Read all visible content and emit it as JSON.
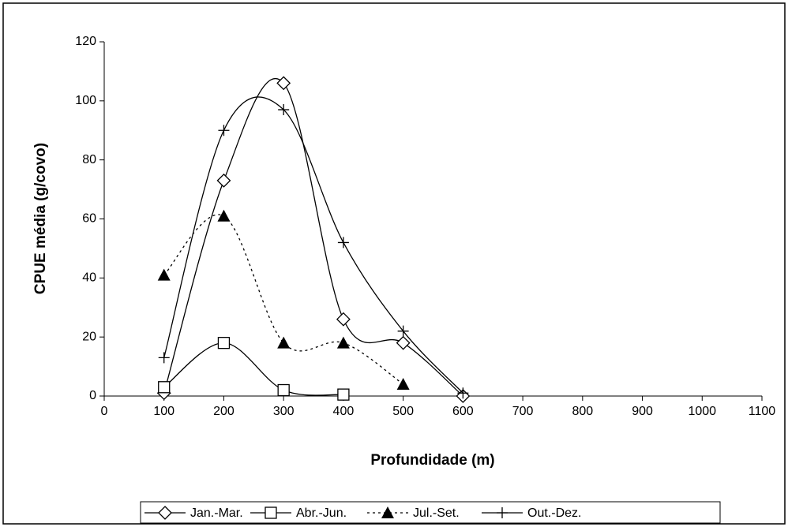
{
  "chart_data": {
    "type": "line",
    "x_label": "Profundidade (m)",
    "y_label": "CPUE média (g/covo)",
    "xlim": [
      0,
      1100
    ],
    "xticks": [
      0,
      100,
      200,
      300,
      400,
      500,
      600,
      700,
      800,
      900,
      1000,
      1100
    ],
    "ylim": [
      0,
      120
    ],
    "yticks": [
      0,
      20,
      40,
      60,
      80,
      100,
      120
    ],
    "grid": false,
    "legend": "bottom",
    "smooth": true,
    "series": [
      {
        "name": "Jan.-Mar.",
        "color": "#000000",
        "marker": "diamond",
        "dash": "solid",
        "x": [
          100,
          200,
          300,
          400,
          500,
          600
        ],
        "values": [
          1,
          73,
          106,
          26,
          18,
          0
        ]
      },
      {
        "name": "Abr.-Jun.",
        "color": "#000000",
        "marker": "square",
        "dash": "solid",
        "x": [
          100,
          200,
          300,
          400
        ],
        "values": [
          3,
          18,
          2,
          0.5
        ]
      },
      {
        "name": "Jul.-Set.",
        "color": "#000000",
        "marker": "triangle",
        "dash": "dotted",
        "x": [
          100,
          200,
          300,
          400,
          500
        ],
        "values": [
          41,
          61,
          18,
          18,
          4
        ]
      },
      {
        "name": "Out.-Dez.",
        "color": "#000000",
        "marker": "plus",
        "dash": "solid",
        "x": [
          100,
          200,
          300,
          400,
          500,
          600
        ],
        "values": [
          13,
          90,
          97,
          52,
          22,
          1
        ]
      }
    ]
  }
}
